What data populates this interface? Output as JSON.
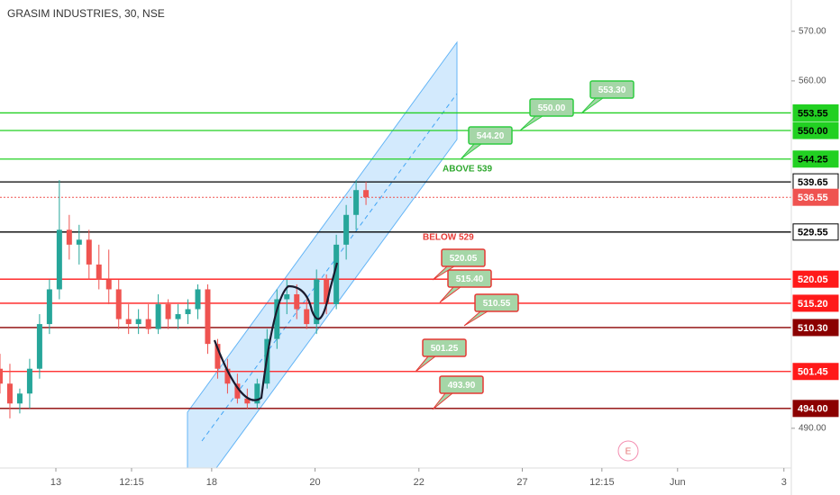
{
  "chart_data": {
    "type": "candlestick",
    "title": "GRASIM INDUSTRIES, 30, NSE",
    "x": [
      0,
      2,
      4,
      6,
      8,
      10,
      12,
      14,
      16,
      18,
      20,
      22,
      24,
      26,
      28,
      30,
      32,
      34,
      36,
      38,
      40,
      42,
      44,
      46,
      48,
      50,
      52,
      54,
      56,
      58,
      60,
      62,
      64,
      66,
      68,
      70,
      72,
      74
    ],
    "candles": [
      [
        502,
        505,
        497,
        499
      ],
      [
        499,
        503,
        492,
        495
      ],
      [
        495,
        498,
        493,
        497
      ],
      [
        497,
        504,
        494,
        502
      ],
      [
        502,
        513,
        500,
        511
      ],
      [
        511,
        520,
        509,
        518
      ],
      [
        518,
        540,
        516,
        530
      ],
      [
        530,
        533,
        524,
        527
      ],
      [
        527,
        531,
        523,
        528
      ],
      [
        528,
        530,
        520,
        523
      ],
      [
        523,
        527,
        518,
        520
      ],
      [
        520,
        526,
        515,
        518
      ],
      [
        518,
        520,
        510,
        512
      ],
      [
        512,
        515,
        509,
        511
      ],
      [
        511,
        514,
        509,
        512
      ],
      [
        512,
        515,
        509,
        510
      ],
      [
        510,
        517,
        509,
        515
      ],
      [
        515,
        516,
        510,
        512
      ],
      [
        512,
        515,
        510,
        513
      ],
      [
        513,
        516,
        511,
        514
      ],
      [
        514,
        519,
        512,
        518
      ],
      [
        518,
        519,
        505,
        507
      ],
      [
        507,
        508,
        500,
        502
      ],
      [
        502,
        504,
        497,
        499
      ],
      [
        499,
        501,
        495,
        496
      ],
      [
        496,
        498,
        494,
        495
      ],
      [
        495,
        500,
        494,
        499
      ],
      [
        499,
        510,
        498,
        508
      ],
      [
        508,
        518,
        506,
        516
      ],
      [
        516,
        520,
        513,
        517
      ],
      [
        517,
        519,
        512,
        514
      ],
      [
        514,
        516,
        510,
        511
      ],
      [
        511,
        522,
        509,
        520
      ],
      [
        520,
        521,
        513,
        515
      ],
      [
        515,
        529,
        514,
        527
      ],
      [
        527,
        535,
        524,
        533
      ],
      [
        533,
        540,
        530,
        538
      ],
      [
        538,
        539.65,
        535,
        536.55
      ]
    ],
    "up_color": "#26a69a",
    "down_color": "#ef5350",
    "xlim": [
      0,
      160
    ],
    "ylim": [
      482,
      576.3
    ],
    "xticks": [
      {
        "value": 11.3,
        "label": "13"
      },
      {
        "value": 26.6,
        "label": "12:15"
      },
      {
        "value": 42.8,
        "label": "18"
      },
      {
        "value": 63.7,
        "label": "20"
      },
      {
        "value": 84.7,
        "label": "22"
      },
      {
        "value": 105.6,
        "label": "27"
      },
      {
        "value": 121.7,
        "label": "12:15"
      },
      {
        "value": 137,
        "label": "Jun"
      },
      {
        "value": 158.5,
        "label": "3"
      }
    ],
    "yticks": [
      {
        "value": 570,
        "label": "570.00"
      },
      {
        "value": 560,
        "label": "560.00"
      },
      {
        "value": 490,
        "label": "490.00"
      }
    ],
    "levels": [
      {
        "value": 553.55,
        "label": "553.55",
        "color": "#22d022"
      },
      {
        "value": 550,
        "label": "550.00",
        "color": "#22d022"
      },
      {
        "value": 544.25,
        "label": "544.25",
        "color": "#22d022"
      },
      {
        "value": 539.65,
        "label": "539.65",
        "color": "#000000"
      },
      {
        "value": 536.55,
        "label": "536.55",
        "color": "#ef5350"
      },
      {
        "value": 529.55,
        "label": "529.55",
        "color": "#000000"
      },
      {
        "value": 520.05,
        "label": "520.05",
        "color": "#ff1a1a"
      },
      {
        "value": 515.2,
        "label": "515.20",
        "color": "#ff1a1a"
      },
      {
        "value": 510.3,
        "label": "510.30",
        "color": "#8b0000"
      },
      {
        "value": 501.45,
        "label": "501.45",
        "color": "#ff1a1a"
      },
      {
        "value": 494,
        "label": "494.00",
        "color": "#8b0000"
      }
    ],
    "callouts": [
      "553.30",
      "550.00",
      "544.20",
      "520.05",
      "515.40",
      "510.55",
      "501.25",
      "493.90"
    ],
    "annotations": [
      "ABOVE 539",
      "BELOW 529",
      "E"
    ]
  }
}
